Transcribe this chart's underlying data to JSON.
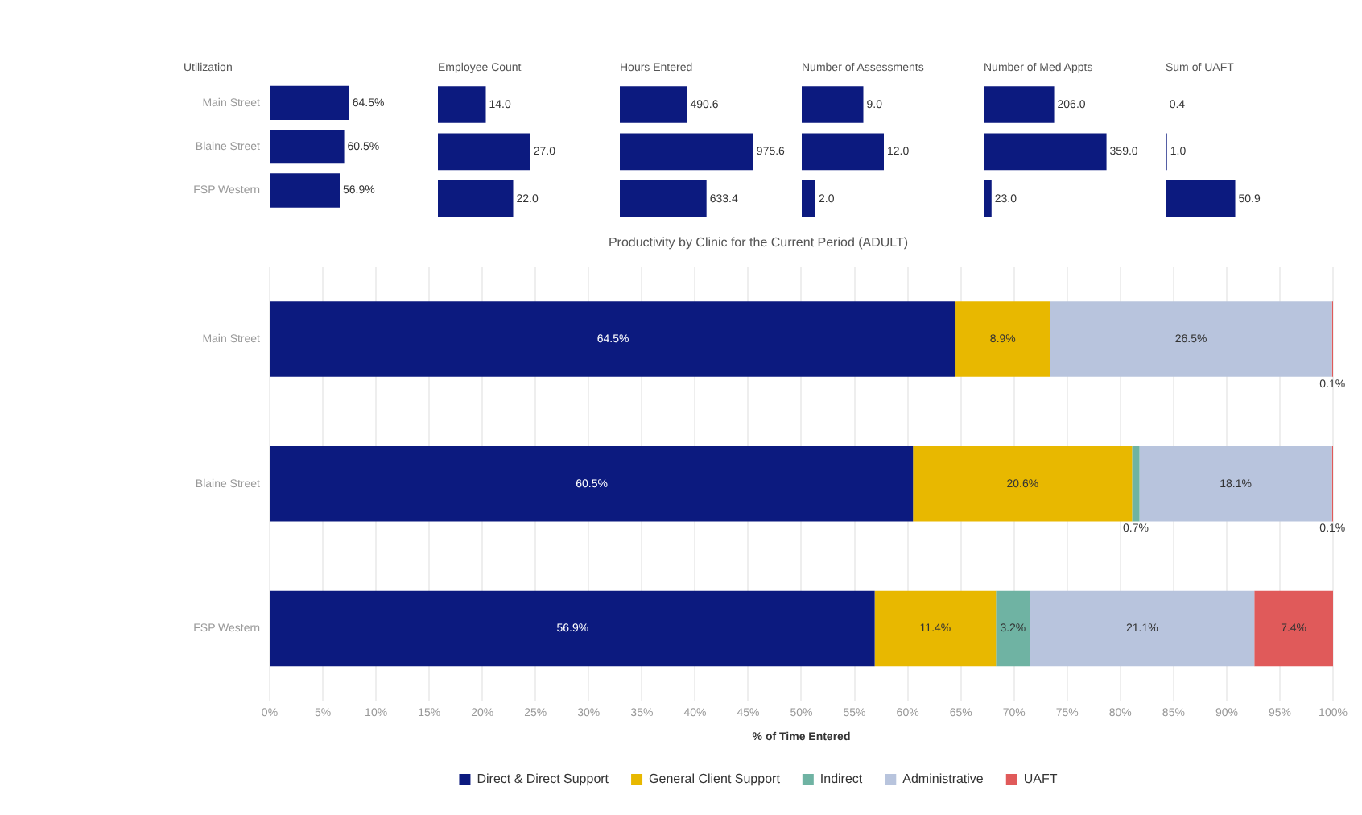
{
  "chart_data": [
    {
      "type": "bar",
      "orientation": "horizontal",
      "title": "Utilization",
      "categories": [
        "Main Street",
        "Blaine Street",
        "FSP Western"
      ],
      "values": [
        64.5,
        60.5,
        56.9
      ],
      "color": "#0c1a7f",
      "value_labels": [
        "64.5%",
        "60.5%",
        "56.9%"
      ],
      "tick_labels": "y"
    },
    {
      "type": "bar",
      "orientation": "horizontal",
      "title": "Employee Count",
      "categories": [
        null,
        null,
        null
      ],
      "values": [
        14.0,
        27.0,
        22.0
      ],
      "color": "#0c1a7f",
      "value_labels": [
        "14.0",
        "27.0",
        "22.0"
      ],
      "tick_labels": false
    },
    {
      "type": "bar",
      "orientation": "horizontal",
      "title": "Hours Entered",
      "categories": [
        null,
        null,
        null
      ],
      "values": [
        490.6,
        975.6,
        633.4
      ],
      "color": "#0c1a7f",
      "value_labels": [
        "490.6",
        "975.6",
        "633.4"
      ],
      "tick_labels": false
    },
    {
      "type": "bar",
      "orientation": "horizontal",
      "title": "Number of Assessments",
      "categories": [
        null,
        null,
        null
      ],
      "values": [
        9.0,
        12.0,
        2.0
      ],
      "color": "#0c1a7f",
      "value_labels": [
        "9.0",
        "12.0",
        "2.0"
      ],
      "tick_labels": false
    },
    {
      "type": "bar",
      "orientation": "horizontal",
      "title": "Number of Med Appts",
      "categories": [
        null,
        null,
        null
      ],
      "values": [
        206.0,
        359.0,
        23.0
      ],
      "color": "#0c1a7f",
      "value_labels": [
        "206.0",
        "359.0",
        "23.0"
      ],
      "tick_labels": false
    },
    {
      "type": "bar",
      "orientation": "horizontal",
      "title": "Sum of UAFT",
      "categories": [
        null,
        null,
        null
      ],
      "values": [
        0.4,
        1.0,
        50.9
      ],
      "color": "#0c1a7f",
      "value_labels": [
        "0.4",
        "1.0",
        "50.9"
      ],
      "tick_labels": false
    },
    {
      "type": "bar",
      "orientation": "horizontal",
      "stacked": true,
      "title": "Productivity by Clinic for the Current Period (ADULT)",
      "xlabel": "% of Time Entered",
      "categories": [
        "Main Street",
        "Blaine Street",
        "FSP Western"
      ],
      "series": [
        {
          "name": "Direct & Direct Support",
          "color": "#0c1a7f",
          "values": [
            64.5,
            60.5,
            56.9
          ],
          "value_labels": [
            "64.5%",
            "60.5%",
            "56.9%"
          ]
        },
        {
          "name": "General Client Support",
          "color": "#e8b800",
          "values": [
            8.9,
            20.6,
            11.4
          ],
          "value_labels": [
            "8.9%",
            "20.6%",
            "11.4%"
          ]
        },
        {
          "name": "Indirect",
          "color": "#6fb3a3",
          "values": [
            null,
            0.7,
            3.2
          ],
          "value_labels": [
            null,
            "0.7%",
            "3.2%"
          ]
        },
        {
          "name": "Administrative",
          "color": "#b8c4dd",
          "values": [
            26.5,
            18.1,
            21.1
          ],
          "value_labels": [
            "26.5%",
            "18.1%",
            "21.1%"
          ]
        },
        {
          "name": "UAFT",
          "color": "#e05a5a",
          "values": [
            0.1,
            0.1,
            7.4
          ],
          "value_labels": [
            "0.1%",
            "0.1%",
            "7.4%"
          ]
        }
      ],
      "xlim": [
        0,
        100
      ],
      "xticks": [
        {
          "value": 0,
          "label": "0%"
        },
        {
          "value": 5,
          "label": "5%"
        },
        {
          "value": 10,
          "label": "10%"
        },
        {
          "value": 15,
          "label": "15%"
        },
        {
          "value": 20,
          "label": "20%"
        },
        {
          "value": 25,
          "label": "25%"
        },
        {
          "value": 30,
          "label": "30%"
        },
        {
          "value": 35,
          "label": "35%"
        },
        {
          "value": 40,
          "label": "40%"
        },
        {
          "value": 45,
          "label": "45%"
        },
        {
          "value": 50,
          "label": "50%"
        },
        {
          "value": 55,
          "label": "55%"
        },
        {
          "value": 60,
          "label": "60%"
        },
        {
          "value": 65,
          "label": "65%"
        },
        {
          "value": 70,
          "label": "70%"
        },
        {
          "value": 75,
          "label": "75%"
        },
        {
          "value": 80,
          "label": "80%"
        },
        {
          "value": 85,
          "label": "85%"
        },
        {
          "value": 90,
          "label": "90%"
        },
        {
          "value": 95,
          "label": "95%"
        },
        {
          "value": 100,
          "label": "100%"
        }
      ],
      "grid": "x",
      "legend": "bottom"
    }
  ]
}
